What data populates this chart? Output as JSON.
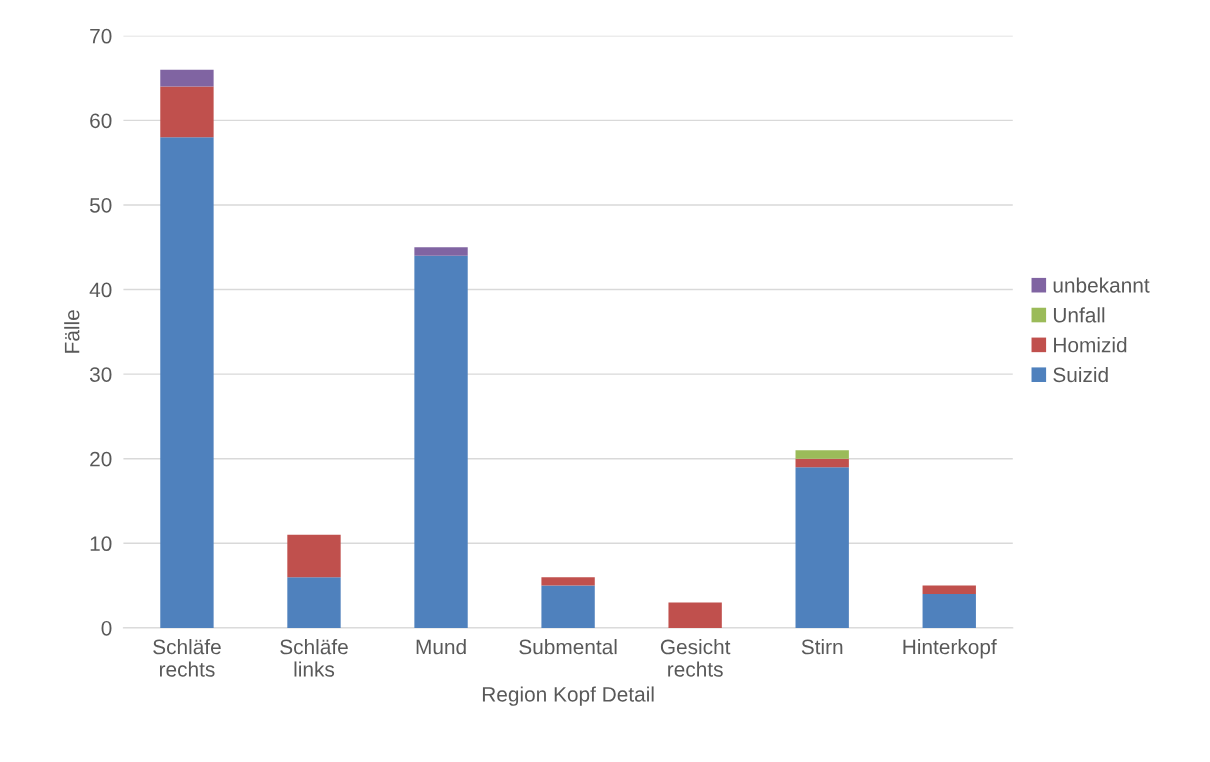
{
  "chart_data": {
    "type": "bar",
    "stacked": true,
    "xlabel": "Region Kopf Detail",
    "ylabel": "Fälle",
    "categories": [
      "Schläfe\nrechts",
      "Schläfe\nlinks",
      "Mund",
      "Submental",
      "Gesicht\nrechts",
      "Stirn",
      "Hinterkopf"
    ],
    "series": [
      {
        "name": "Suizid",
        "color": "#4f81bd",
        "values": [
          58,
          6,
          44,
          5,
          0,
          19,
          4
        ]
      },
      {
        "name": "Homizid",
        "color": "#c0504d",
        "values": [
          6,
          5,
          0,
          1,
          3,
          1,
          1
        ]
      },
      {
        "name": "Unfall",
        "color": "#9bbb59",
        "values": [
          0,
          0,
          0,
          0,
          0,
          1,
          0
        ]
      },
      {
        "name": "unbekannt",
        "color": "#8064a2",
        "values": [
          2,
          0,
          1,
          0,
          0,
          0,
          0
        ]
      }
    ],
    "ylim": [
      0,
      70
    ],
    "yticks": [
      0,
      10,
      20,
      30,
      40,
      50,
      60,
      70
    ],
    "grid": "y",
    "legend": "right"
  }
}
